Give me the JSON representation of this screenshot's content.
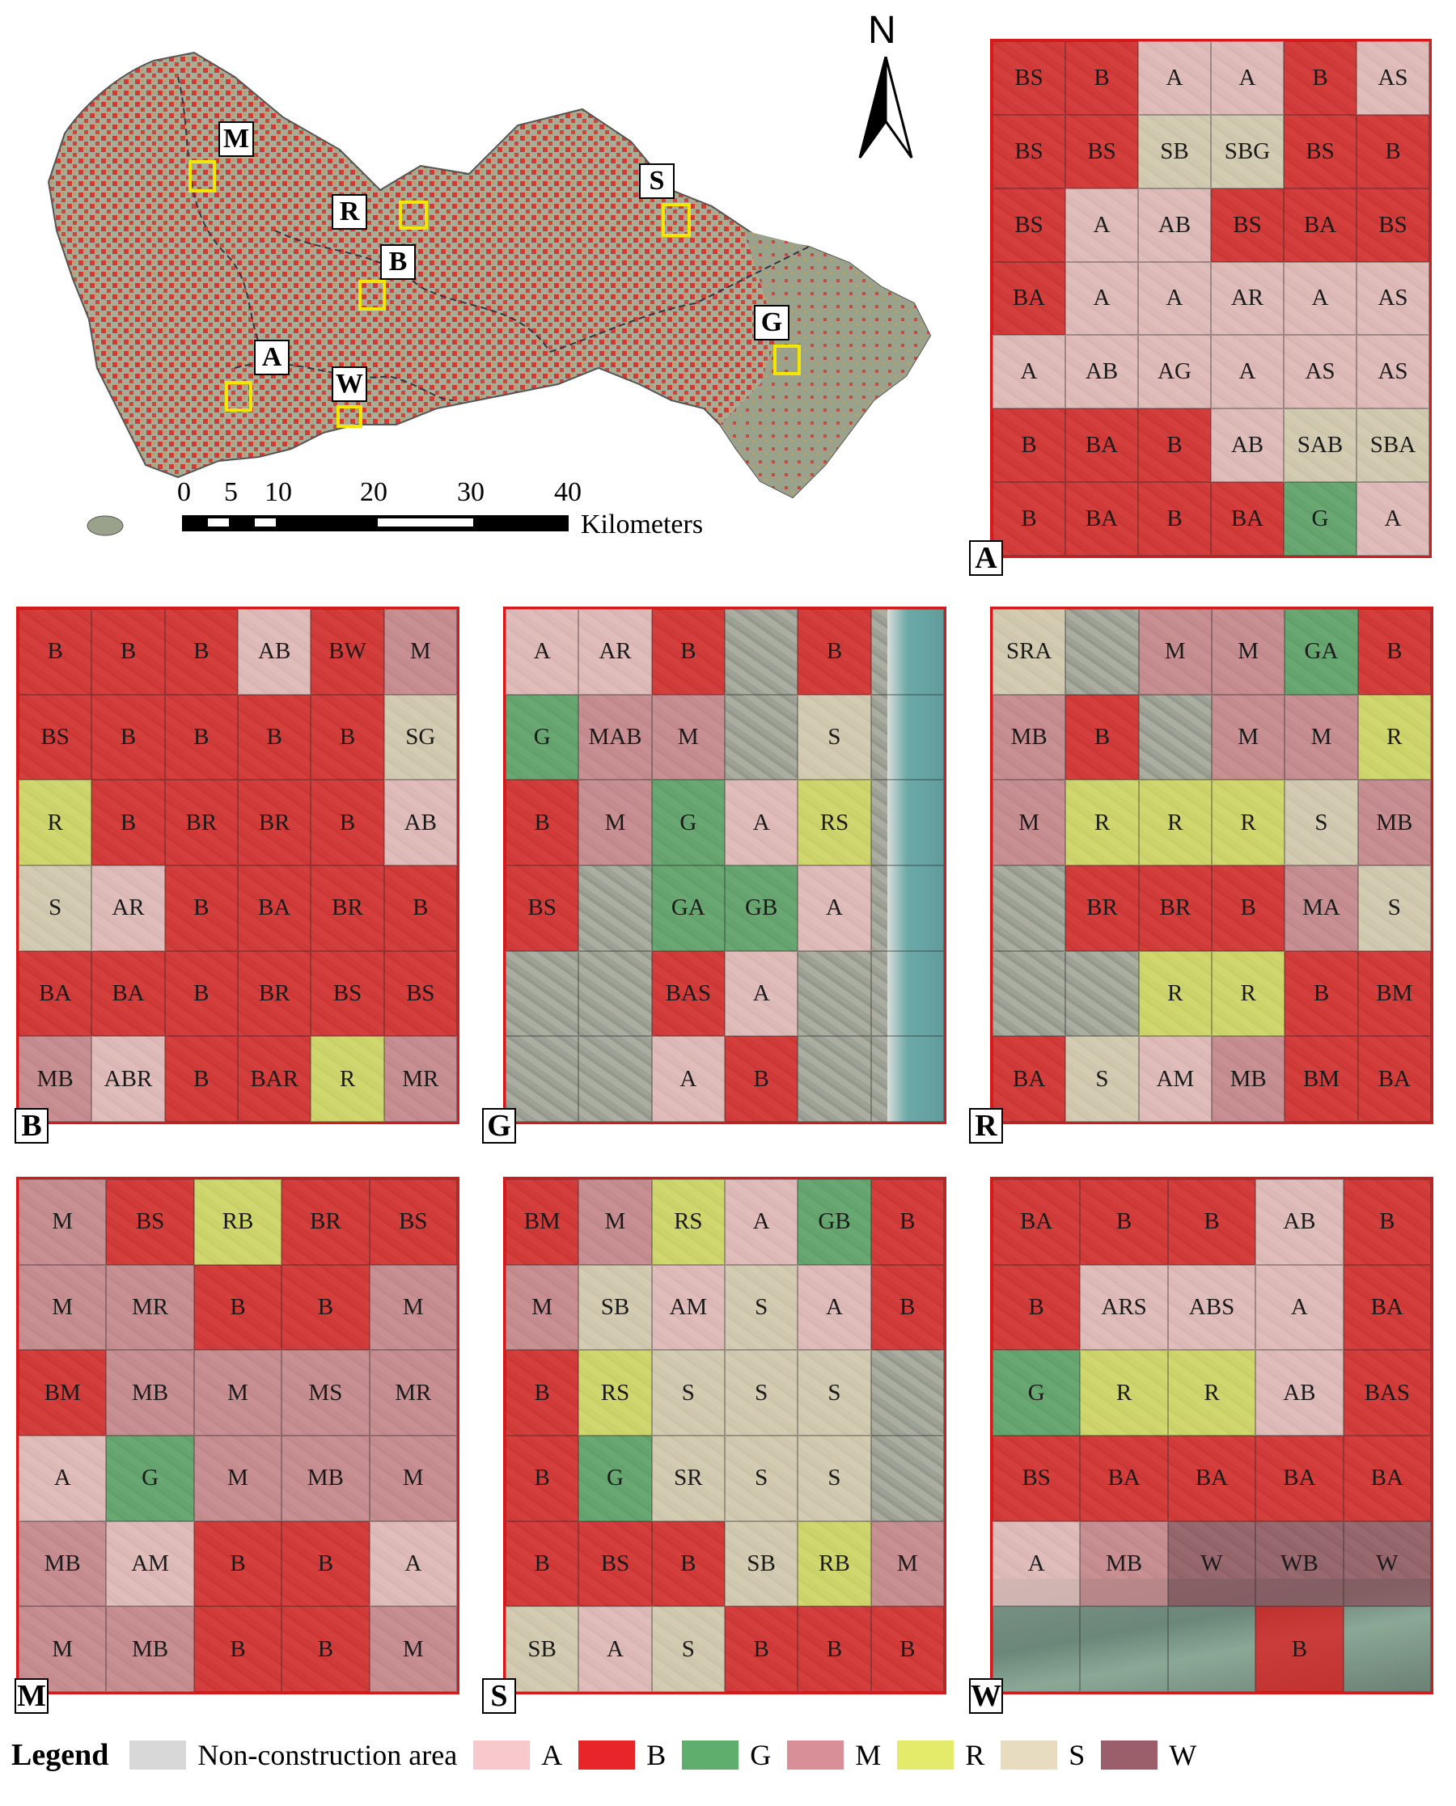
{
  "overview": {
    "north_label": "N",
    "scale_ticks": [
      "0",
      "5",
      "10",
      "20",
      "30",
      "40"
    ],
    "scale_unit": "Kilometers",
    "sites": [
      {
        "id": "M",
        "label": "M"
      },
      {
        "id": "R",
        "label": "R"
      },
      {
        "id": "B",
        "label": "B"
      },
      {
        "id": "S",
        "label": "S"
      },
      {
        "id": "A",
        "label": "A"
      },
      {
        "id": "W",
        "label": "W"
      },
      {
        "id": "G",
        "label": "G"
      }
    ]
  },
  "colors": {
    "A": "#f7c9cc",
    "B": "#e8262a",
    "G": "#5fae6e",
    "M": "#d98f98",
    "R": "#e4ea6a",
    "S": "#e7dcc0",
    "W": "#9b5f6c",
    "N": "#d8d8d8"
  },
  "panels": [
    {
      "id": "A",
      "label": "A",
      "rows": [
        [
          "BS",
          "B",
          "A",
          "A",
          "B",
          "AS"
        ],
        [
          "BS",
          "BS",
          "SB",
          "SBG",
          "BS",
          "B"
        ],
        [
          "BS",
          "A",
          "AB",
          "BS",
          "BA",
          "BS"
        ],
        [
          "BA",
          "A",
          "A",
          "AR",
          "A",
          "AS"
        ],
        [
          "A",
          "AB",
          "AG",
          "A",
          "AS",
          "AS"
        ],
        [
          "B",
          "BA",
          "B",
          "AB",
          "SAB",
          "SBA"
        ],
        [
          "B",
          "BA",
          "B",
          "BA",
          "G",
          "A"
        ]
      ]
    },
    {
      "id": "B",
      "label": "B",
      "rows": [
        [
          "B",
          "B",
          "B",
          "AB",
          "BW",
          "M"
        ],
        [
          "BS",
          "B",
          "B",
          "B",
          "B",
          "SG"
        ],
        [
          "R",
          "B",
          "BR",
          "BR",
          "B",
          "AB"
        ],
        [
          "S",
          "AR",
          "B",
          "BA",
          "BR",
          "B"
        ],
        [
          "BA",
          "BA",
          "B",
          "BR",
          "BS",
          "BS"
        ],
        [
          "MB",
          "ABR",
          "B",
          "BAR",
          "R",
          "MR"
        ]
      ]
    },
    {
      "id": "G",
      "label": "G",
      "rows": [
        [
          "A",
          "AR",
          "B",
          "",
          "B",
          ""
        ],
        [
          "G",
          "MAB",
          "M",
          "",
          "S",
          ""
        ],
        [
          "B",
          "M",
          "G",
          "A",
          "RS",
          ""
        ],
        [
          "BS",
          "",
          "GA",
          "GB",
          "A",
          ""
        ],
        [
          "",
          "",
          "BAS",
          "A",
          "",
          ""
        ],
        [
          "",
          "",
          "A",
          "B",
          "",
          ""
        ]
      ]
    },
    {
      "id": "R",
      "label": "R",
      "rows": [
        [
          "SRA",
          "",
          "M",
          "M",
          "GA",
          "B"
        ],
        [
          "MB",
          "B",
          "",
          "M",
          "M",
          "R"
        ],
        [
          "M",
          "R",
          "R",
          "R",
          "S",
          "MB"
        ],
        [
          "",
          "BR",
          "BR",
          "B",
          "MA",
          "S"
        ],
        [
          "",
          "",
          "R",
          "R",
          "B",
          "BM"
        ],
        [
          "BA",
          "S",
          "AM",
          "MB",
          "BM",
          "BA"
        ]
      ]
    },
    {
      "id": "M",
      "label": "M",
      "rows": [
        [
          "M",
          "BS",
          "RB",
          "BR",
          "BS"
        ],
        [
          "M",
          "MR",
          "B",
          "B",
          "M"
        ],
        [
          "BM",
          "MB",
          "M",
          "MS",
          "MR"
        ],
        [
          "A",
          "G",
          "M",
          "MB",
          "M"
        ],
        [
          "MB",
          "AM",
          "B",
          "B",
          "A"
        ],
        [
          "M",
          "MB",
          "B",
          "B",
          "M"
        ]
      ]
    },
    {
      "id": "S",
      "label": "S",
      "rows": [
        [
          "BM",
          "M",
          "RS",
          "A",
          "GB",
          "B"
        ],
        [
          "M",
          "SB",
          "AM",
          "S",
          "A",
          "B"
        ],
        [
          "B",
          "RS",
          "S",
          "S",
          "S",
          ""
        ],
        [
          "B",
          "G",
          "SR",
          "S",
          "S",
          ""
        ],
        [
          "B",
          "BS",
          "B",
          "SB",
          "RB",
          "M"
        ],
        [
          "SB",
          "A",
          "S",
          "B",
          "B",
          "B"
        ]
      ]
    },
    {
      "id": "W",
      "label": "W",
      "rows": [
        [
          "BA",
          "B",
          "B",
          "AB",
          "B"
        ],
        [
          "B",
          "ARS",
          "ABS",
          "A",
          "BA"
        ],
        [
          "G",
          "R",
          "R",
          "AB",
          "BAS"
        ],
        [
          "BS",
          "BA",
          "BA",
          "BA",
          "BA"
        ],
        [
          "A",
          "MB",
          "W",
          "WB",
          "W"
        ],
        [
          "",
          "",
          "",
          "B",
          ""
        ]
      ]
    }
  ],
  "legend": {
    "title": "Legend",
    "items": [
      {
        "key": "N",
        "label": "Non-construction area"
      },
      {
        "key": "A",
        "label": "A"
      },
      {
        "key": "B",
        "label": "B"
      },
      {
        "key": "G",
        "label": "G"
      },
      {
        "key": "M",
        "label": "M"
      },
      {
        "key": "R",
        "label": "R"
      },
      {
        "key": "S",
        "label": "S"
      },
      {
        "key": "W",
        "label": "W"
      }
    ]
  }
}
